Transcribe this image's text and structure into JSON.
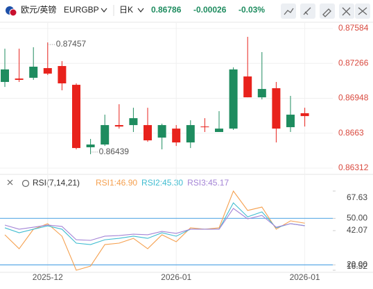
{
  "header": {
    "symbol_name": "欧元/英镑",
    "symbol_code": "EURGBP",
    "period": "日K",
    "price": "0.86786",
    "change": "-0.00026",
    "change_pct": "-0.03%"
  },
  "chart_data": [
    {
      "type": "candlestick",
      "categories": [
        null,
        null,
        null,
        "2025-12",
        null,
        null,
        null,
        null,
        null,
        null,
        null,
        null,
        "2026-01",
        null,
        null,
        null,
        null,
        null,
        null,
        null,
        null,
        "2026-01"
      ],
      "open": [
        0.87097,
        0.87128,
        0.87135,
        0.87223,
        0.87242,
        0.87071,
        0.86502,
        0.86527,
        0.86704,
        0.86704,
        0.86704,
        0.8659,
        0.86672,
        0.86546,
        0.86691,
        0.86641,
        0.86672,
        0.87147,
        0.86957,
        0.8704,
        0.86685,
        0.86812
      ],
      "high": [
        0.874,
        0.874,
        0.87413,
        0.87457,
        0.87287,
        0.87084,
        0.86578,
        0.86799,
        0.86894,
        0.86862,
        0.86862,
        0.86717,
        0.86704,
        0.86748,
        0.86767,
        0.86831,
        0.8723,
        0.87508,
        0.87369,
        0.87097,
        0.8697,
        0.86862
      ],
      "low": [
        0.87052,
        0.87097,
        0.87116,
        0.8716,
        0.87021,
        0.86483,
        0.86439,
        0.86514,
        0.86672,
        0.86641,
        0.86552,
        0.86483,
        0.86514,
        0.86495,
        0.86641,
        0.86641,
        0.8666,
        0.86957,
        0.86938,
        0.86546,
        0.86641,
        0.86691
      ],
      "close": [
        0.87211,
        0.87116,
        0.87236,
        0.87173,
        0.87084,
        0.86495,
        0.86527,
        0.86704,
        0.86691,
        0.86767,
        0.86565,
        0.86704,
        0.86546,
        0.86704,
        0.86685,
        0.86672,
        0.87211,
        0.86957,
        0.87033,
        0.86672,
        0.86799,
        0.86786
      ],
      "up_color": "#1e8c5f",
      "down_color": "#e8221c",
      "ylim": [
        0.86312,
        0.87584
      ],
      "yticks": [
        0.87584,
        0.87266,
        0.86948,
        0.8663,
        0.86312
      ],
      "annotations": [
        {
          "text": "0.87457",
          "index": 3,
          "at": "high"
        },
        {
          "text": "0.86439",
          "index": 6,
          "at": "low"
        }
      ],
      "grid": true
    },
    {
      "type": "line",
      "title": "RSI(7,14,21)",
      "series": [
        {
          "name": "RSI1:46.90",
          "color": "#f5a04f",
          "values": [
            39.38,
            30.41,
            42.97,
            46.55,
            38.48,
            16.52,
            19.2,
            33.1,
            34.0,
            37.1,
            30.4,
            39.4,
            34.9,
            43.9,
            43.0,
            43.9,
            67.63,
            55.1,
            57.3,
            43.0,
            48.4,
            46.9
          ]
        },
        {
          "name": "RSI2:45.30",
          "color": "#3fbcd0",
          "values": [
            43.9,
            40.7,
            43.0,
            45.2,
            43.0,
            34.0,
            33.1,
            36.2,
            37.1,
            38.5,
            37.1,
            40.7,
            38.5,
            43.0,
            43.0,
            43.0,
            60.0,
            51.0,
            54.2,
            43.9,
            46.6,
            45.3
          ]
        },
        {
          "name": "RSI3:45.17",
          "color": "#a484d6",
          "values": [
            45.66,
            43.0,
            44.3,
            45.7,
            44.8,
            36.2,
            35.8,
            38.5,
            38.9,
            39.8,
            39.4,
            41.6,
            40.3,
            43.0,
            43.0,
            43.0,
            56.4,
            49.7,
            51.9,
            44.3,
            46.6,
            45.17
          ]
        }
      ],
      "ylim": [
        16.52,
        67.63
      ],
      "yticks": [
        67.63,
        {
          "value": 50,
          "label": "50.00"
        },
        42.07,
        {
          "value": 20,
          "label": "20.00"
        },
        16.52
      ],
      "hlines": [
        50,
        20
      ],
      "hline_color": "#5aa9e6"
    }
  ]
}
